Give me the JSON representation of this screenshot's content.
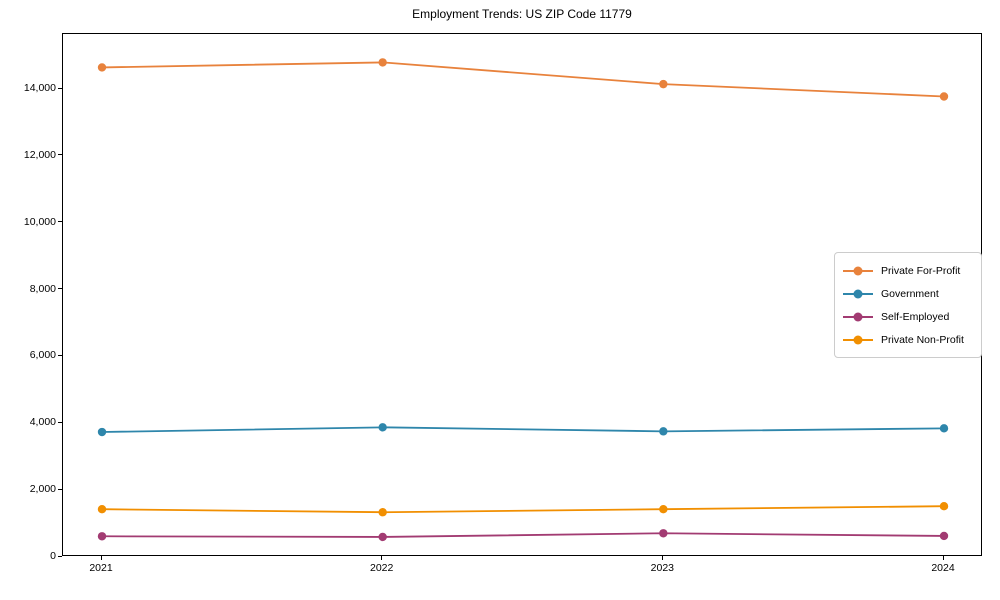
{
  "title": "Employment Trends: US ZIP Code 11779",
  "chart_data": {
    "type": "line",
    "title": "Employment Trends: US ZIP Code 11779",
    "xlabel": "",
    "ylabel": "",
    "categories": [
      "2021",
      "2022",
      "2023",
      "2024"
    ],
    "x": [
      2021,
      2022,
      2023,
      2024
    ],
    "series": [
      {
        "name": "Private For-Profit",
        "color": "#E8823C",
        "values": [
          14650,
          14800,
          14150,
          13780
        ]
      },
      {
        "name": "Government",
        "color": "#2E86AB",
        "values": [
          3740,
          3880,
          3760,
          3850
        ]
      },
      {
        "name": "Self-Employed",
        "color": "#A23B72",
        "values": [
          620,
          600,
          710,
          630
        ]
      },
      {
        "name": "Private Non-Profit",
        "color": "#F18F01",
        "values": [
          1430,
          1340,
          1430,
          1520
        ]
      }
    ],
    "ylim": [
      0,
      15650
    ],
    "yticks": [
      0,
      2000,
      4000,
      6000,
      8000,
      10000,
      12000,
      14000
    ],
    "ytick_labels": [
      "0",
      "2,000",
      "4,000",
      "6,000",
      "8,000",
      "10,000",
      "12,000",
      "14,000"
    ],
    "grid": false,
    "legend_position": "center-right",
    "axis_color": "#000000",
    "background_color": "#ffffff"
  }
}
